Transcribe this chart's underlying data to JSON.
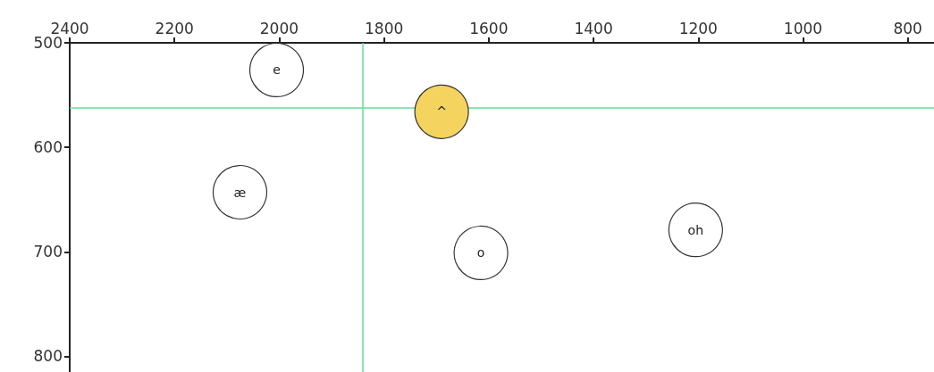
{
  "chart_data": {
    "type": "scatter",
    "marker": "circle",
    "grid": false,
    "legend": false,
    "xlim": [
      2400,
      750
    ],
    "xticks": [
      2400,
      2200,
      2000,
      1800,
      1600,
      1400,
      1200,
      1000,
      800
    ],
    "ylim": [
      815,
      500
    ],
    "yticks": [
      500,
      600,
      700,
      800
    ],
    "series": [
      {
        "name": "e",
        "color": "#ffffff",
        "x": [
          2005
        ],
        "values": [
          526
        ]
      },
      {
        "name": "^",
        "color": "#f4d35e",
        "x": [
          1690
        ],
        "values": [
          566
        ]
      },
      {
        "name": "æ",
        "color": "#ffffff",
        "x": [
          2075
        ],
        "values": [
          643
        ]
      },
      {
        "name": "o",
        "color": "#ffffff",
        "x": [
          1615
        ],
        "values": [
          701
        ]
      },
      {
        "name": "oh",
        "color": "#ffffff",
        "x": [
          1205
        ],
        "values": [
          679
        ]
      }
    ],
    "ref_lines": [
      {
        "axis": "x",
        "value": 1840,
        "color": "#66dd99"
      },
      {
        "axis": "y",
        "value": 562,
        "color": "#66dd99"
      }
    ]
  }
}
